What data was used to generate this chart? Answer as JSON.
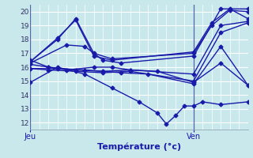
{
  "xlabel": "Température (°c)",
  "ylim": [
    11.5,
    20.5
  ],
  "xlim": [
    0,
    24
  ],
  "yticks": [
    12,
    13,
    14,
    15,
    16,
    17,
    18,
    19,
    20
  ],
  "jeu_x": 0,
  "ven_x": 18,
  "xtick_labels": [
    "Jeu",
    "Ven"
  ],
  "bg_color": "#c8e8ec",
  "grid_color": "#b0d8de",
  "line_color": "#1a1aaa",
  "marker": "D",
  "markersize": 2.5,
  "linewidth": 1.0,
  "series": [
    [
      0,
      16.4,
      3,
      18.0,
      5,
      19.5,
      7,
      17.0,
      9,
      16.6,
      18,
      17.0,
      20,
      19.0,
      22,
      20.1,
      24,
      20.0
    ],
    [
      0,
      16.4,
      3,
      18.1,
      5,
      19.4,
      7,
      16.8,
      9,
      16.5,
      18,
      17.1,
      20,
      19.2,
      22,
      20.2,
      24,
      19.5
    ],
    [
      0,
      16.3,
      4,
      17.6,
      6,
      17.5,
      8,
      16.5,
      10,
      16.3,
      18,
      16.8,
      21,
      20.2,
      24,
      20.2
    ],
    [
      0,
      16.2,
      2,
      16.0,
      5,
      15.8,
      8,
      15.7,
      11,
      15.8,
      18,
      15.5,
      21,
      19.0,
      24,
      19.3
    ],
    [
      0,
      15.9,
      2,
      15.8,
      5,
      15.7,
      8,
      15.6,
      11,
      15.7,
      18,
      15.0,
      21,
      18.5,
      24,
      19.2
    ],
    [
      0,
      15.9,
      3,
      15.9,
      6,
      15.8,
      10,
      15.6,
      13,
      15.5,
      18,
      14.8,
      21,
      17.5,
      24,
      14.7
    ],
    [
      0,
      14.9,
      3,
      16.0,
      6,
      15.5,
      9,
      14.5,
      12,
      13.5,
      14,
      12.7,
      15,
      11.9,
      16,
      12.5,
      17,
      13.2,
      18,
      13.2,
      19,
      13.5,
      21,
      13.3,
      24,
      13.5
    ],
    [
      0,
      16.5,
      2,
      16.0,
      4,
      15.8,
      7,
      16.0,
      9,
      16.0,
      11,
      15.8,
      14,
      15.7,
      18,
      14.9,
      21,
      16.3,
      24,
      14.7
    ]
  ]
}
